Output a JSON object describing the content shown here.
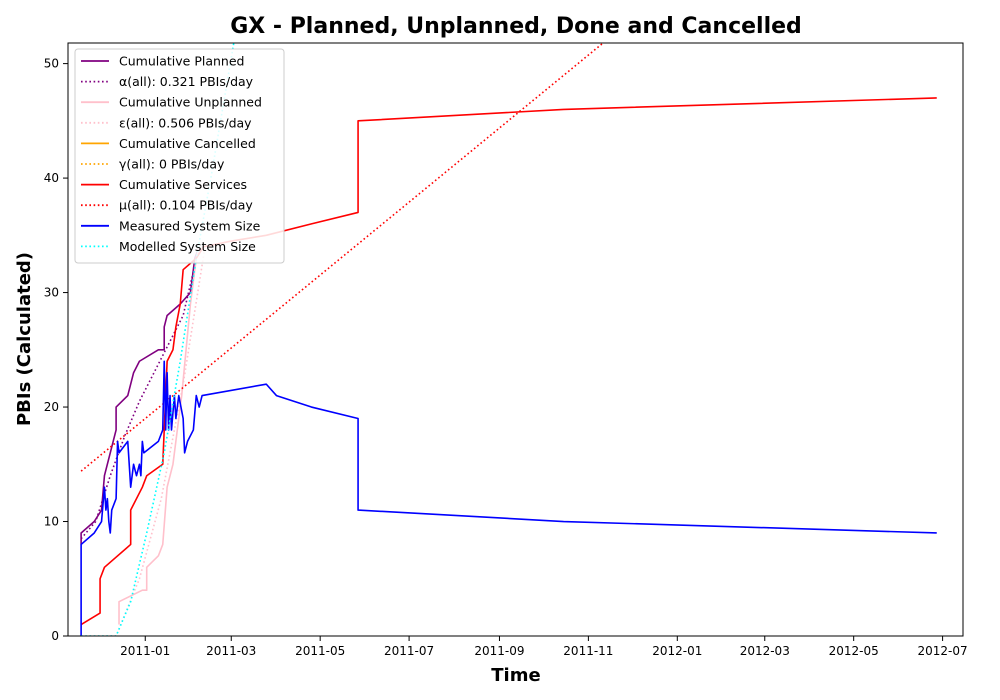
{
  "chart_data": {
    "type": "line",
    "title": "GX - Planned, Unplanned, Done  and Cancelled",
    "xlabel": "Time",
    "ylabel": "PBIs (Calculated)",
    "xlim": [
      "2010-11-09",
      "2012-07-15"
    ],
    "ylim": [
      0,
      51.8
    ],
    "x_ticks": [
      "2011-01",
      "2011-03",
      "2011-05",
      "2011-07",
      "2011-09",
      "2011-11",
      "2012-01",
      "2012-03",
      "2012-05",
      "2012-07"
    ],
    "y_ticks": [
      0,
      10,
      20,
      30,
      40,
      50
    ],
    "grid": false,
    "legend_position": "top-left",
    "series": [
      {
        "name": "Cumulative Planned",
        "color": "#800080",
        "style": "solid",
        "points": [
          [
            "2010-11-18",
            8
          ],
          [
            "2010-11-18",
            9
          ],
          [
            "2010-11-27",
            10
          ],
          [
            "2010-12-02",
            11
          ],
          [
            "2010-12-04",
            14
          ],
          [
            "2010-12-08",
            16
          ],
          [
            "2010-12-12",
            18
          ],
          [
            "2010-12-12",
            20
          ],
          [
            "2010-12-20",
            21
          ],
          [
            "2010-12-24",
            23
          ],
          [
            "2010-12-28",
            24
          ],
          [
            "2011-01-10",
            25
          ],
          [
            "2011-01-14",
            25
          ],
          [
            "2011-01-14",
            27
          ],
          [
            "2011-01-16",
            28
          ],
          [
            "2011-01-25",
            29
          ],
          [
            "2011-02-01",
            30
          ],
          [
            "2011-02-04",
            33
          ],
          [
            "2011-02-07",
            34
          ]
        ]
      },
      {
        "name": "α(all): 0.321 PBIs/day",
        "color": "#800080",
        "style": "dotted",
        "points": [
          [
            "2010-11-18",
            8.5
          ],
          [
            "2010-11-28",
            10
          ],
          [
            "2010-12-08",
            14
          ],
          [
            "2010-12-18",
            17.5
          ],
          [
            "2010-12-28",
            20.5
          ],
          [
            "2011-01-07",
            23
          ],
          [
            "2011-01-17",
            25.5
          ],
          [
            "2011-01-27",
            28
          ],
          [
            "2011-02-07",
            34
          ]
        ]
      },
      {
        "name": "Cumulative Unplanned",
        "color": "#ffc0cb",
        "style": "solid",
        "points": [
          [
            "2010-12-14",
            1
          ],
          [
            "2010-12-14",
            3
          ],
          [
            "2010-12-30",
            4
          ],
          [
            "2011-01-02",
            4
          ],
          [
            "2011-01-02",
            6
          ],
          [
            "2011-01-10",
            7
          ],
          [
            "2011-01-13",
            8
          ],
          [
            "2011-01-16",
            13
          ],
          [
            "2011-01-20",
            15
          ],
          [
            "2011-01-23",
            18
          ],
          [
            "2011-01-26",
            21
          ],
          [
            "2011-01-29",
            25
          ],
          [
            "2011-02-01",
            29
          ],
          [
            "2011-02-03",
            31
          ],
          [
            "2011-02-05",
            33
          ],
          [
            "2011-02-07",
            34
          ]
        ]
      },
      {
        "name": "ε(all): 0.506 PBIs/day",
        "color": "#ffc0cb",
        "style": "dotted",
        "points": [
          [
            "2010-11-18",
            0
          ],
          [
            "2010-12-12",
            0
          ],
          [
            "2010-12-28",
            5
          ],
          [
            "2011-01-12",
            12
          ],
          [
            "2011-01-27",
            22
          ],
          [
            "2011-02-11",
            34
          ]
        ]
      },
      {
        "name": "Cumulative Cancelled",
        "color": "#ffa500",
        "style": "solid",
        "points": []
      },
      {
        "name": "γ(all): 0 PBIs/day",
        "color": "#ffa500",
        "style": "dotted",
        "points": []
      },
      {
        "name": "Cumulative Services",
        "color": "#ff0000",
        "style": "solid",
        "points": [
          [
            "2010-11-18",
            1
          ],
          [
            "2010-12-01",
            2
          ],
          [
            "2010-12-01",
            5
          ],
          [
            "2010-12-04",
            6
          ],
          [
            "2010-12-22",
            8
          ],
          [
            "2010-12-22",
            11
          ],
          [
            "2010-12-30",
            13
          ],
          [
            "2011-01-02",
            14
          ],
          [
            "2011-01-13",
            15
          ],
          [
            "2011-01-16",
            24
          ],
          [
            "2011-01-20",
            25
          ],
          [
            "2011-01-22",
            27
          ],
          [
            "2011-01-25",
            29
          ],
          [
            "2011-01-27",
            32
          ],
          [
            "2011-02-05",
            33
          ],
          [
            "2011-02-10",
            34
          ],
          [
            "2011-03-01",
            34.5
          ],
          [
            "2011-03-25",
            35
          ],
          [
            "2011-04-25",
            36
          ],
          [
            "2011-05-27",
            37
          ],
          [
            "2011-05-27",
            45
          ],
          [
            "2011-10-15",
            46
          ],
          [
            "2012-06-27",
            47
          ]
        ]
      },
      {
        "name": "μ(all): 0.104 PBIs/day",
        "color": "#ff0000",
        "style": "dotted",
        "points": [
          [
            "2010-11-18",
            14.4
          ],
          [
            "2011-11-13",
            52
          ]
        ]
      },
      {
        "name": "Measured System Size",
        "color": "#0000ff",
        "style": "solid",
        "points": [
          [
            "2010-11-18",
            0
          ],
          [
            "2010-11-18",
            8
          ],
          [
            "2010-11-27",
            9
          ],
          [
            "2010-12-02",
            10
          ],
          [
            "2010-12-04",
            13
          ],
          [
            "2010-12-05",
            11
          ],
          [
            "2010-12-06",
            12
          ],
          [
            "2010-12-07",
            10
          ],
          [
            "2010-12-08",
            9
          ],
          [
            "2010-12-09",
            11
          ],
          [
            "2010-12-12",
            12
          ],
          [
            "2010-12-13",
            17
          ],
          [
            "2010-12-14",
            16
          ],
          [
            "2010-12-20",
            17
          ],
          [
            "2010-12-22",
            13
          ],
          [
            "2010-12-24",
            15
          ],
          [
            "2010-12-26",
            14
          ],
          [
            "2010-12-28",
            15
          ],
          [
            "2010-12-29",
            14
          ],
          [
            "2010-12-30",
            17
          ],
          [
            "2010-12-31",
            16
          ],
          [
            "2011-01-10",
            17
          ],
          [
            "2011-01-13",
            18
          ],
          [
            "2011-01-14",
            24
          ],
          [
            "2011-01-15",
            18
          ],
          [
            "2011-01-16",
            23
          ],
          [
            "2011-01-17",
            18
          ],
          [
            "2011-01-18",
            21
          ],
          [
            "2011-01-19",
            18
          ],
          [
            "2011-01-21",
            21
          ],
          [
            "2011-01-22",
            19
          ],
          [
            "2011-01-24",
            21
          ],
          [
            "2011-01-27",
            19
          ],
          [
            "2011-01-28",
            16
          ],
          [
            "2011-01-30",
            17
          ],
          [
            "2011-02-03",
            18
          ],
          [
            "2011-02-05",
            21
          ],
          [
            "2011-02-07",
            20
          ],
          [
            "2011-02-09",
            21
          ],
          [
            "2011-03-25",
            22
          ],
          [
            "2011-04-01",
            21
          ],
          [
            "2011-04-25",
            20
          ],
          [
            "2011-05-27",
            19
          ],
          [
            "2011-05-27",
            11
          ],
          [
            "2011-10-15",
            10
          ],
          [
            "2012-06-27",
            9
          ]
        ]
      },
      {
        "name": "Modelled System Size",
        "color": "#00ffff",
        "style": "dotted",
        "points": [
          [
            "2010-11-18",
            0
          ],
          [
            "2010-12-12",
            0
          ],
          [
            "2010-12-22",
            3
          ],
          [
            "2011-01-02",
            9
          ],
          [
            "2011-01-14",
            16
          ],
          [
            "2011-01-25",
            24
          ],
          [
            "2011-02-05",
            33
          ],
          [
            "2011-02-15",
            40
          ],
          [
            "2011-03-03",
            52
          ]
        ]
      }
    ]
  }
}
